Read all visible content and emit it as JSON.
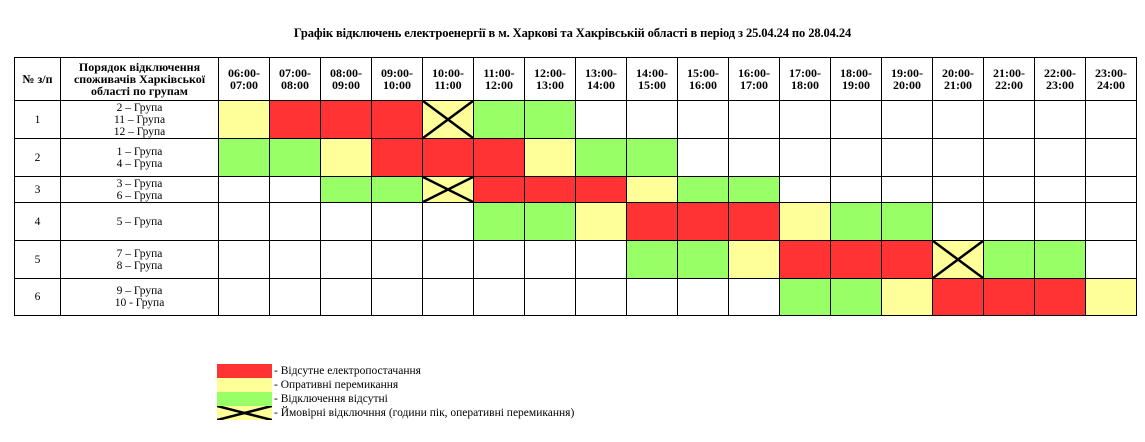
{
  "title": "Графік відключень електроенергії в м. Харкові та Хакрівській області в період з 25.04.24 по 28.04.24",
  "colors": {
    "red": "#ff3333",
    "yellow": "#ffff99",
    "green": "#99ff66",
    "none": "#ffffff"
  },
  "table": {
    "headers": {
      "num": "№ з/п",
      "groups": [
        "Порядок відключення",
        "споживачів Харківської",
        "області по групам"
      ],
      "hours": [
        [
          "06:00-",
          "07:00"
        ],
        [
          "07:00-",
          "08:00"
        ],
        [
          "08:00-",
          "09:00"
        ],
        [
          "09:00-",
          "10:00"
        ],
        [
          "10:00-",
          "11:00"
        ],
        [
          "11:00-",
          "12:00"
        ],
        [
          "12:00-",
          "13:00"
        ],
        [
          "13:00-",
          "14:00"
        ],
        [
          "14:00-",
          "15:00"
        ],
        [
          "15:00-",
          "16:00"
        ],
        [
          "16:00-",
          "17:00"
        ],
        [
          "17:00-",
          "18:00"
        ],
        [
          "18:00-",
          "19:00"
        ],
        [
          "19:00-",
          "20:00"
        ],
        [
          "20:00-",
          "21:00"
        ],
        [
          "21:00-",
          "22:00"
        ],
        [
          "22:00-",
          "23:00"
        ],
        [
          "23:00-",
          "24:00"
        ]
      ]
    },
    "rows": [
      {
        "num": "1",
        "groups": [
          "2 – Група",
          "11 – Група",
          "12 – Група"
        ],
        "cells": [
          "yellow",
          "red",
          "red",
          "red",
          "yellow-x",
          "green",
          "green",
          "none",
          "none",
          "none",
          "none",
          "none",
          "none",
          "none",
          "none",
          "none",
          "none",
          "none"
        ]
      },
      {
        "num": "2",
        "groups": [
          "1 – Група",
          "4 – Група"
        ],
        "cells": [
          "green",
          "green",
          "yellow",
          "red",
          "red",
          "red",
          "yellow",
          "green",
          "green",
          "none",
          "none",
          "none",
          "none",
          "none",
          "none",
          "none",
          "none",
          "none"
        ]
      },
      {
        "num": "3",
        "groups": [
          "3 – Група",
          "6 – Група"
        ],
        "cells": [
          "none",
          "none",
          "green",
          "green",
          "yellow-x",
          "red",
          "red",
          "red",
          "yellow",
          "green",
          "green",
          "none",
          "none",
          "none",
          "none",
          "none",
          "none",
          "none"
        ]
      },
      {
        "num": "4",
        "groups": [
          "5 – Група"
        ],
        "cells": [
          "none",
          "none",
          "none",
          "none",
          "none",
          "green",
          "green",
          "yellow",
          "red",
          "red",
          "red",
          "yellow",
          "green",
          "green",
          "none",
          "none",
          "none",
          "none"
        ]
      },
      {
        "num": "5",
        "groups": [
          "7 – Група",
          "8 – Група"
        ],
        "cells": [
          "none",
          "none",
          "none",
          "none",
          "none",
          "none",
          "none",
          "none",
          "green",
          "green",
          "yellow",
          "red",
          "red",
          "red",
          "yellow-x",
          "green",
          "green",
          "none"
        ]
      },
      {
        "num": "6",
        "groups": [
          "9 – Група",
          "10 - Група"
        ],
        "cells": [
          "none",
          "none",
          "none",
          "none",
          "none",
          "none",
          "none",
          "none",
          "none",
          "none",
          "none",
          "green",
          "green",
          "yellow",
          "red",
          "red",
          "red",
          "yellow"
        ]
      }
    ]
  },
  "legend": [
    {
      "swatch": "red",
      "label": "- Відсутне електропостачання"
    },
    {
      "swatch": "yellow",
      "label": "- Опративні перемикання"
    },
    {
      "swatch": "green",
      "label": "- Відключення відсутні"
    },
    {
      "swatch": "yellow-x",
      "label": "- Ймовірні відключння (години пік, оперативні перемикання)"
    }
  ]
}
